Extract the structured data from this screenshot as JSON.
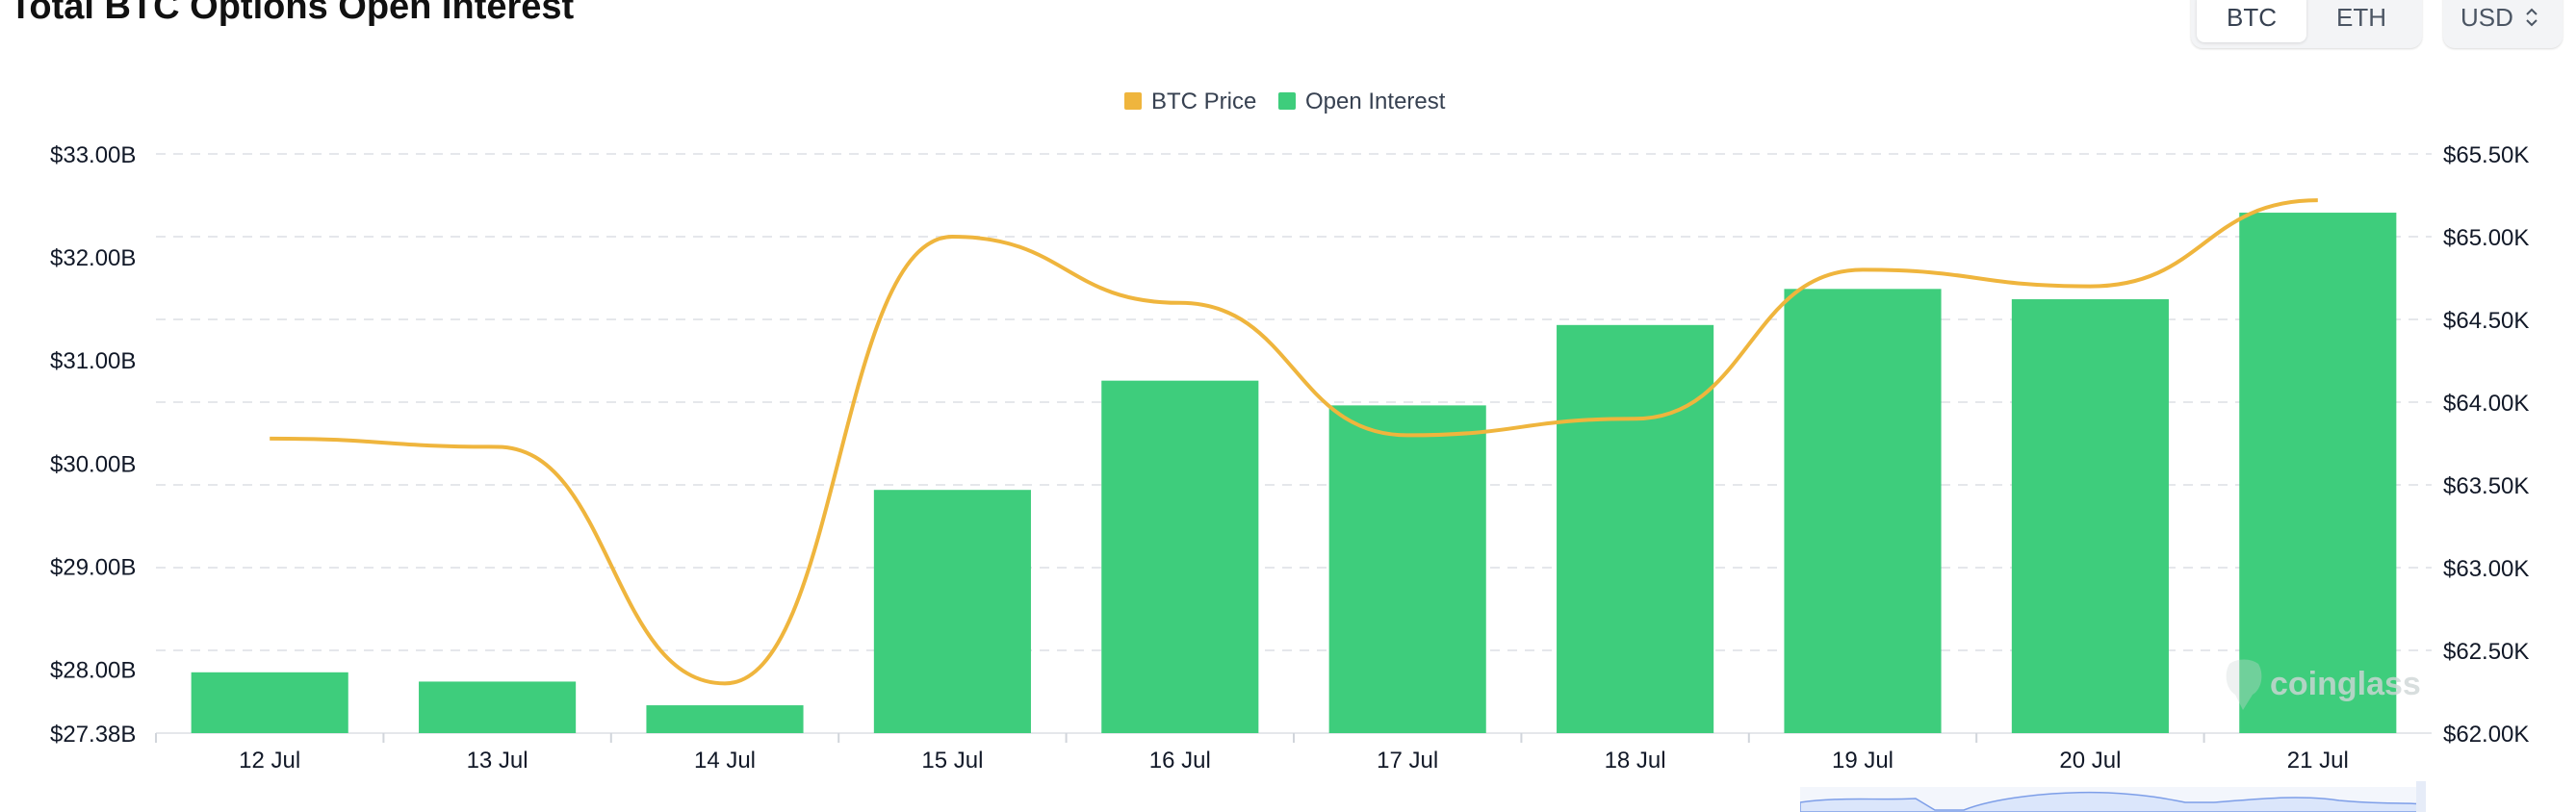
{
  "page": {
    "title": "Total BTC Options Open Interest"
  },
  "controls": {
    "asset_toggle": [
      {
        "label": "BTC",
        "active": true
      },
      {
        "label": "ETH",
        "active": false
      }
    ],
    "currency_select": {
      "value": "USD"
    }
  },
  "watermark": "coinglass",
  "colors": {
    "bar": "#3ecd7c",
    "line": "#efb53d",
    "grid": "#e5e7eb",
    "text": "#111827"
  },
  "chart_data": {
    "type": "bar",
    "categories": [
      "12 Jul",
      "13 Jul",
      "14 Jul",
      "15 Jul",
      "16 Jul",
      "17 Jul",
      "18 Jul",
      "19 Jul",
      "20 Jul",
      "21 Jul"
    ],
    "series": [
      {
        "name": "Open Interest",
        "type": "bar",
        "axis": "left",
        "values": [
          27.97,
          27.88,
          27.65,
          29.74,
          30.8,
          30.56,
          31.34,
          31.69,
          31.59,
          32.43
        ]
      },
      {
        "name": "BTC Price",
        "type": "line",
        "axis": "right",
        "values": [
          63780,
          63730,
          62300,
          65000,
          64600,
          63800,
          63900,
          64800,
          64700,
          65220
        ]
      }
    ],
    "legend": [
      "BTC Price",
      "Open Interest"
    ],
    "legend_position": "top-center",
    "y_left": {
      "ylim": [
        27.38,
        33.0
      ],
      "ticks": [
        "$27.38B",
        "$28.00B",
        "$29.00B",
        "$30.00B",
        "$31.00B",
        "$32.00B",
        "$33.00B"
      ],
      "tick_values": [
        27.38,
        28,
        29,
        30,
        31,
        32,
        33
      ]
    },
    "y_right": {
      "ylim": [
        62000,
        65500
      ],
      "ticks": [
        "$62.00K",
        "$62.50K",
        "$63.00K",
        "$63.50K",
        "$64.00K",
        "$64.50K",
        "$65.00K",
        "$65.50K"
      ],
      "tick_values": [
        62000,
        62500,
        63000,
        63500,
        64000,
        64500,
        65000,
        65500
      ]
    },
    "grid": true
  }
}
